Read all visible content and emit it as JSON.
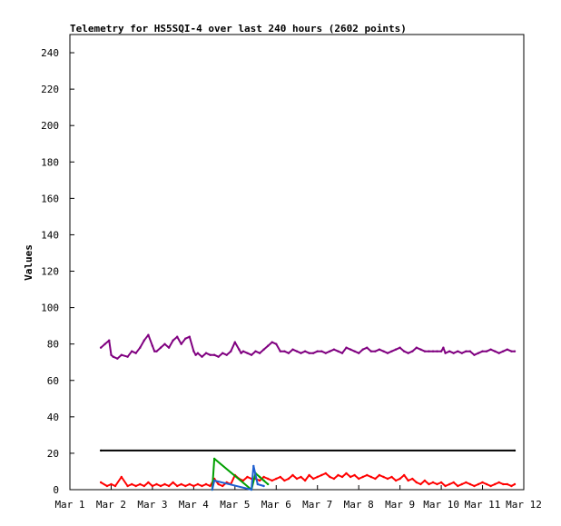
{
  "chart_data": {
    "type": "line",
    "title": "Telemetry for HS5SQI-4 over last 240 hours (2602 points)",
    "ylabel": "Values",
    "xlabel": "",
    "xlim": [
      1,
      12
    ],
    "ylim": [
      0,
      250
    ],
    "x_ticks": [
      "Mar 1",
      "Mar 2",
      "Mar 3",
      "Mar 4",
      "Mar 5",
      "Mar 6",
      "Mar 7",
      "Mar 8",
      "Mar 9",
      "Mar 10",
      "Mar 11",
      "Mar 12"
    ],
    "y_ticks": [
      0,
      20,
      40,
      60,
      80,
      100,
      120,
      140,
      160,
      180,
      200,
      220,
      240
    ],
    "grid": false,
    "legend": "none",
    "series": [
      {
        "color": "#800080",
        "x": [
          1.75,
          1.85,
          1.95,
          2.0,
          2.05,
          2.15,
          2.25,
          2.4,
          2.5,
          2.6,
          2.7,
          2.8,
          2.9,
          3.0,
          3.05,
          3.1,
          3.2,
          3.3,
          3.4,
          3.5,
          3.6,
          3.7,
          3.8,
          3.9,
          4.0,
          4.05,
          4.1,
          4.2,
          4.3,
          4.4,
          4.5,
          4.6,
          4.7,
          4.8,
          4.9,
          5.0,
          5.1,
          5.15,
          5.2,
          5.3,
          5.4,
          5.5,
          5.6,
          5.7,
          5.8,
          5.9,
          6.0,
          6.1,
          6.2,
          6.3,
          6.4,
          6.5,
          6.6,
          6.7,
          6.8,
          6.9,
          7.0,
          7.1,
          7.2,
          7.3,
          7.4,
          7.5,
          7.6,
          7.7,
          7.8,
          7.9,
          8.0,
          8.1,
          8.2,
          8.3,
          8.4,
          8.5,
          8.6,
          8.7,
          8.8,
          8.9,
          9.0,
          9.1,
          9.2,
          9.3,
          9.4,
          9.5,
          9.6,
          9.7,
          9.8,
          9.9,
          10.0,
          10.05,
          10.1,
          10.2,
          10.3,
          10.4,
          10.5,
          10.6,
          10.7,
          10.8,
          10.9,
          11.0,
          11.1,
          11.2,
          11.3,
          11.4,
          11.5,
          11.6,
          11.7,
          11.78
        ],
        "y": [
          78,
          80,
          82,
          74,
          73,
          72,
          74,
          73,
          76,
          75,
          78,
          82,
          85,
          79,
          76,
          76,
          78,
          80,
          78,
          82,
          84,
          80,
          83,
          84,
          76,
          74,
          75,
          73,
          75,
          74,
          74,
          73,
          75,
          74,
          76,
          81,
          77,
          75,
          76,
          75,
          74,
          76,
          75,
          77,
          79,
          81,
          80,
          76,
          76,
          75,
          77,
          76,
          75,
          76,
          75,
          75,
          76,
          76,
          75,
          76,
          77,
          76,
          75,
          78,
          77,
          76,
          75,
          77,
          78,
          76,
          76,
          77,
          76,
          75,
          76,
          77,
          78,
          76,
          75,
          76,
          78,
          77,
          76,
          76,
          76,
          76,
          76,
          78,
          75,
          76,
          75,
          76,
          75,
          76,
          76,
          74,
          75,
          76,
          76,
          77,
          76,
          75,
          76,
          77,
          76,
          76
        ]
      },
      {
        "color": "#000000",
        "x": [
          1.75,
          11.78
        ],
        "y": [
          21.5,
          21.5
        ]
      },
      {
        "color": "#ff0000",
        "x": [
          1.75,
          1.9,
          2.0,
          2.1,
          2.25,
          2.4,
          2.5,
          2.6,
          2.7,
          2.8,
          2.9,
          3.0,
          3.1,
          3.2,
          3.3,
          3.4,
          3.5,
          3.6,
          3.7,
          3.8,
          3.9,
          4.0,
          4.1,
          4.2,
          4.3,
          4.4,
          4.5,
          4.6,
          4.7,
          4.8,
          4.9,
          5.0,
          5.1,
          5.2,
          5.3,
          5.4,
          5.5,
          5.6,
          5.7,
          5.8,
          5.9,
          6.0,
          6.1,
          6.2,
          6.3,
          6.4,
          6.5,
          6.6,
          6.7,
          6.8,
          6.9,
          7.0,
          7.1,
          7.2,
          7.3,
          7.4,
          7.5,
          7.6,
          7.7,
          7.8,
          7.9,
          8.0,
          8.1,
          8.2,
          8.3,
          8.4,
          8.5,
          8.6,
          8.7,
          8.8,
          8.9,
          9.0,
          9.1,
          9.2,
          9.3,
          9.4,
          9.5,
          9.6,
          9.7,
          9.8,
          9.9,
          10.0,
          10.1,
          10.2,
          10.3,
          10.4,
          10.5,
          10.6,
          10.7,
          10.8,
          10.9,
          11.0,
          11.1,
          11.2,
          11.3,
          11.4,
          11.5,
          11.6,
          11.7,
          11.78
        ],
        "y": [
          4,
          2,
          3,
          2,
          7,
          2,
          3,
          2,
          3,
          2,
          4,
          2,
          3,
          2,
          3,
          2,
          4,
          2,
          3,
          2,
          3,
          2,
          3,
          2,
          3,
          2,
          6,
          3,
          2,
          4,
          3,
          8,
          6,
          5,
          7,
          6,
          6,
          5,
          7,
          6,
          5,
          6,
          7,
          5,
          6,
          8,
          6,
          7,
          5,
          8,
          6,
          7,
          8,
          9,
          7,
          6,
          8,
          7,
          9,
          7,
          8,
          6,
          7,
          8,
          7,
          6,
          8,
          7,
          6,
          7,
          5,
          6,
          8,
          5,
          6,
          4,
          3,
          5,
          3,
          4,
          3,
          4,
          2,
          3,
          4,
          2,
          3,
          4,
          3,
          2,
          3,
          4,
          3,
          2,
          3,
          4,
          3,
          3,
          2,
          3
        ]
      },
      {
        "color": "#00a000",
        "x": [
          4.45,
          4.5,
          5.4,
          5.5,
          5.6,
          5.7,
          5.8
        ],
        "y": [
          0,
          17,
          0,
          9,
          7,
          5,
          3
        ]
      },
      {
        "color": "#1f5fd0",
        "x": [
          4.45,
          4.5,
          5.4,
          5.45,
          5.55,
          5.7
        ],
        "y": [
          0,
          5,
          0,
          13,
          3,
          2
        ]
      }
    ]
  }
}
